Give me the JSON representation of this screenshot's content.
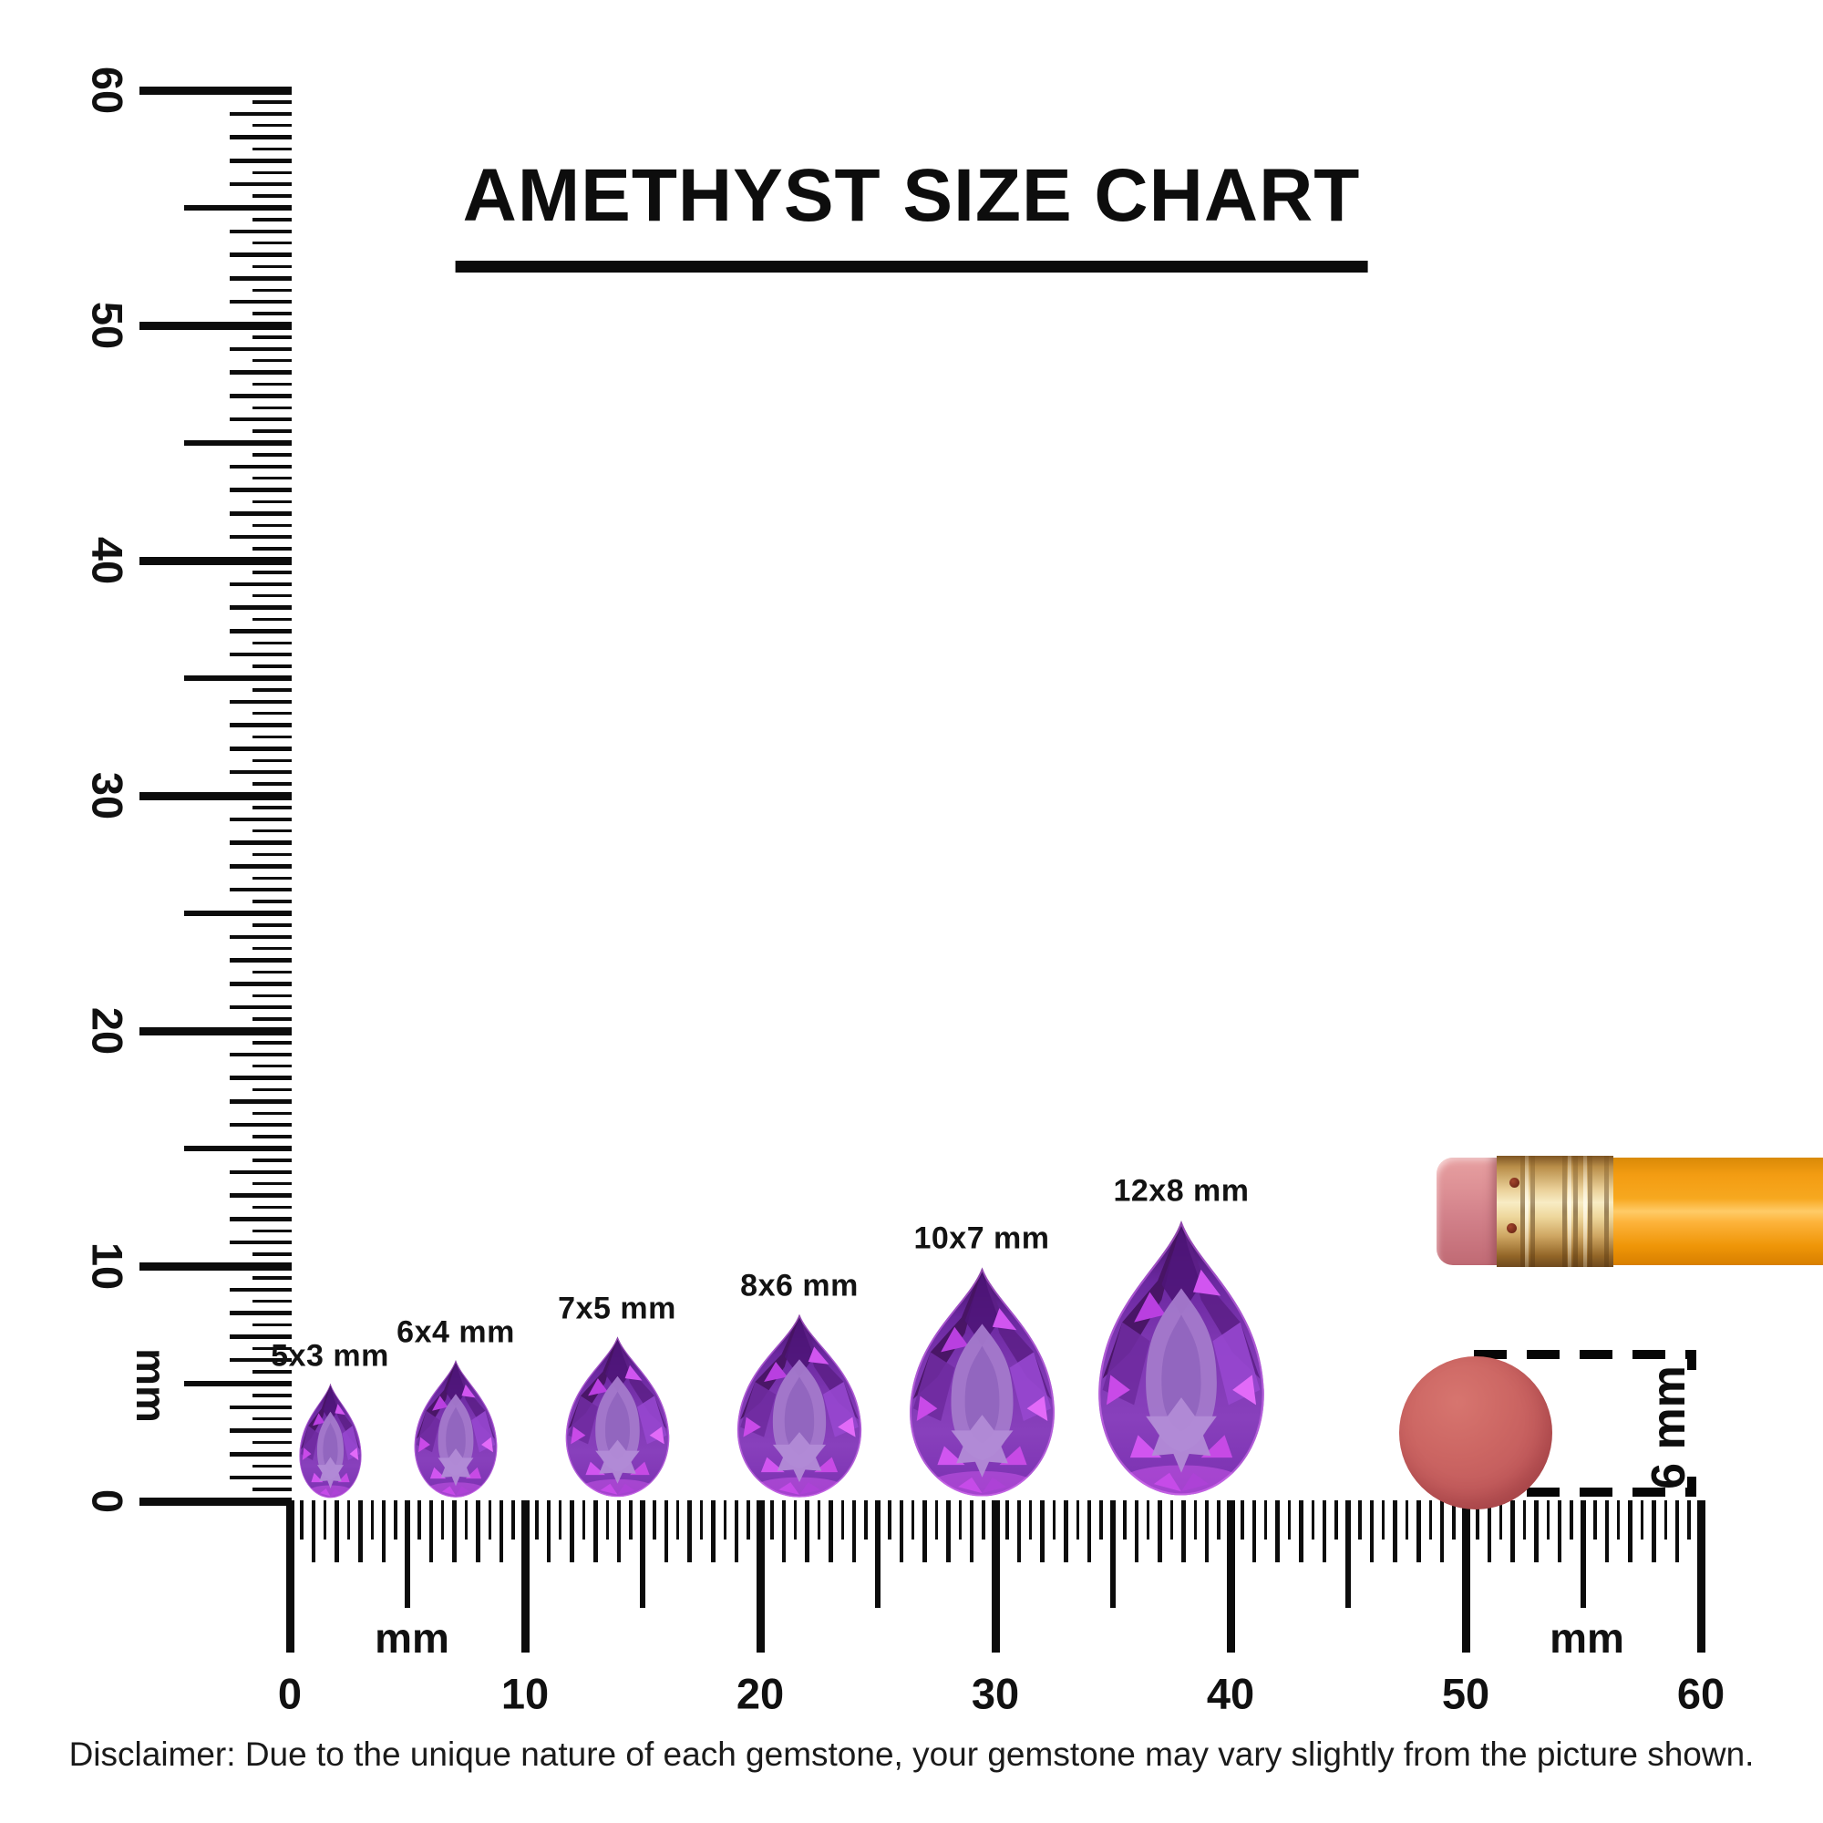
{
  "title": "AMETHYST SIZE CHART",
  "rulers": {
    "vertical": {
      "numbers": [
        "0",
        "10",
        "20",
        "30",
        "40",
        "50",
        "60"
      ],
      "unit_label": "mm"
    },
    "horizontal": {
      "numbers": [
        "0",
        "10",
        "20",
        "30",
        "40",
        "50",
        "60"
      ],
      "unit_label_left": "mm",
      "unit_label_right": "mm"
    }
  },
  "gems": [
    {
      "label": "5x3 mm",
      "width_mm": 3,
      "height_mm": 5
    },
    {
      "label": "6x4 mm",
      "width_mm": 4,
      "height_mm": 6
    },
    {
      "label": "7x5 mm",
      "width_mm": 5,
      "height_mm": 7
    },
    {
      "label": "8x6 mm",
      "width_mm": 6,
      "height_mm": 8
    },
    {
      "label": "10x7 mm",
      "width_mm": 7,
      "height_mm": 10
    },
    {
      "label": "12x8 mm",
      "width_mm": 8,
      "height_mm": 12
    }
  ],
  "references": {
    "dot_label": "6 mm",
    "pencil": "pencil-with-eraser"
  },
  "disclaimer": "Disclaimer: Due to the unique nature of each gemstone, your gemstone may vary slightly from the picture shown.",
  "colors": {
    "ink": "#0c0c0c",
    "amethyst_dark": "#45135f",
    "amethyst_mid": "#7e37b2",
    "amethyst_light": "#a379cb",
    "amethyst_flash": "#d155f0",
    "eraser_pink": "#d2818a",
    "ferrule_gold": "#e9cf97",
    "pencil_orange": "#f7a81f",
    "reference_dot": "#c25b5c"
  }
}
